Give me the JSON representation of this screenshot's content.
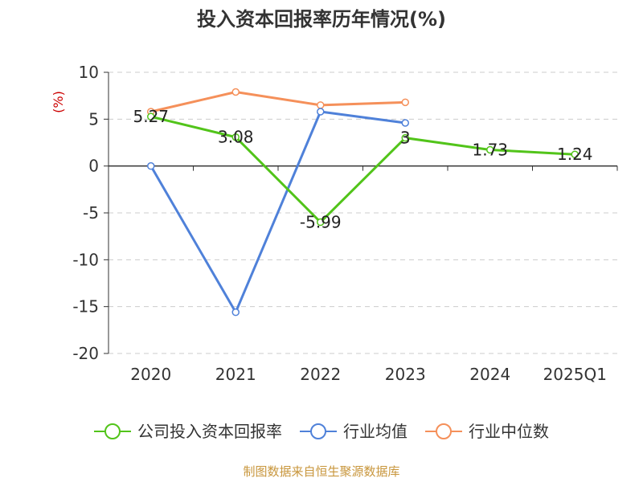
{
  "chart_data": {
    "type": "line",
    "title": "投入资本回报率历年情况(%)",
    "ylabel": "(%)",
    "xlabel": "",
    "categories": [
      "2020",
      "2021",
      "2022",
      "2023",
      "2024",
      "2025Q1"
    ],
    "ylim": [
      -20,
      10
    ],
    "yticks": [
      10,
      5,
      0,
      -5,
      -10,
      -15,
      -20
    ],
    "grid": true,
    "legend_position": "bottom",
    "series": [
      {
        "name": "公司投入资本回报率",
        "color": "#52c41a",
        "values": [
          5.27,
          3.08,
          -5.99,
          3,
          1.73,
          1.24
        ],
        "labels": [
          "5.27",
          "3.08",
          "-5.99",
          "3",
          "1.73",
          "1.24"
        ]
      },
      {
        "name": "行业均值",
        "color": "#4f81d9",
        "values": [
          0,
          -15.6,
          5.8,
          4.6,
          null,
          null
        ]
      },
      {
        "name": "行业中位数",
        "color": "#f5905a",
        "values": [
          5.8,
          7.9,
          6.5,
          6.8,
          null,
          null
        ]
      }
    ]
  },
  "colors": {
    "axis": "#333333",
    "grid": "#cccccc",
    "unit": "#cc0000",
    "source": "#c8963c"
  },
  "source": "制图数据来自恒生聚源数据库"
}
